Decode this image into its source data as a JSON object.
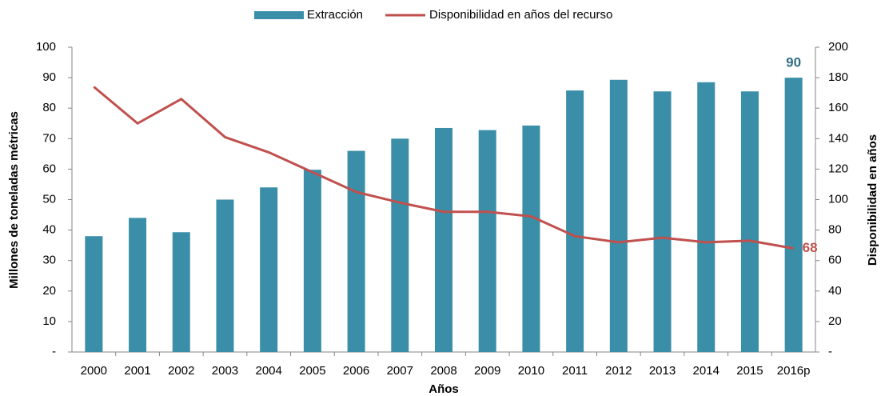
{
  "chart_data": {
    "type": "bar",
    "x_label": "Años",
    "y_label": "Millones de toneladas métricas",
    "y2_label": "Disponibilidad en años",
    "categories": [
      "2000",
      "2001",
      "2002",
      "2003",
      "2004",
      "2005",
      "2006",
      "2007",
      "2008",
      "2009",
      "2010",
      "2011",
      "2012",
      "2013",
      "2014",
      "2015",
      "2016p"
    ],
    "series": [
      {
        "name": "Extracción",
        "type": "bar",
        "color": "#3a8ea8",
        "values": [
          38,
          44,
          39.3,
          50,
          54,
          59.8,
          66,
          70,
          73.5,
          72.8,
          74.3,
          85.8,
          89.3,
          85.5,
          88.5,
          85.5,
          90
        ],
        "value_labels": [
          null,
          null,
          null,
          null,
          null,
          null,
          null,
          null,
          null,
          null,
          null,
          null,
          null,
          null,
          null,
          null,
          "90"
        ],
        "label_color": "#2e6f86"
      },
      {
        "name": "Disponibilidad en años del recurso",
        "type": "line",
        "axis": "y2",
        "color": "#c0504d",
        "values": [
          174,
          150,
          166,
          141,
          131,
          118,
          105,
          98,
          92,
          92,
          89,
          76,
          72,
          75,
          72,
          73,
          68
        ],
        "value_labels": [
          null,
          null,
          null,
          null,
          null,
          null,
          null,
          null,
          null,
          null,
          null,
          null,
          null,
          null,
          null,
          null,
          "68"
        ],
        "label_color": "#c0504d"
      }
    ],
    "ylim": [
      0,
      100
    ],
    "yticks": [
      {
        "value": 0,
        "label": "-"
      },
      10,
      20,
      30,
      40,
      50,
      60,
      70,
      80,
      90,
      100
    ],
    "y2lim": [
      0,
      200
    ],
    "y2ticks": [
      {
        "value": 0,
        "label": "-"
      },
      20,
      40,
      60,
      80,
      100,
      120,
      140,
      160,
      180,
      200
    ],
    "legend": "top"
  }
}
